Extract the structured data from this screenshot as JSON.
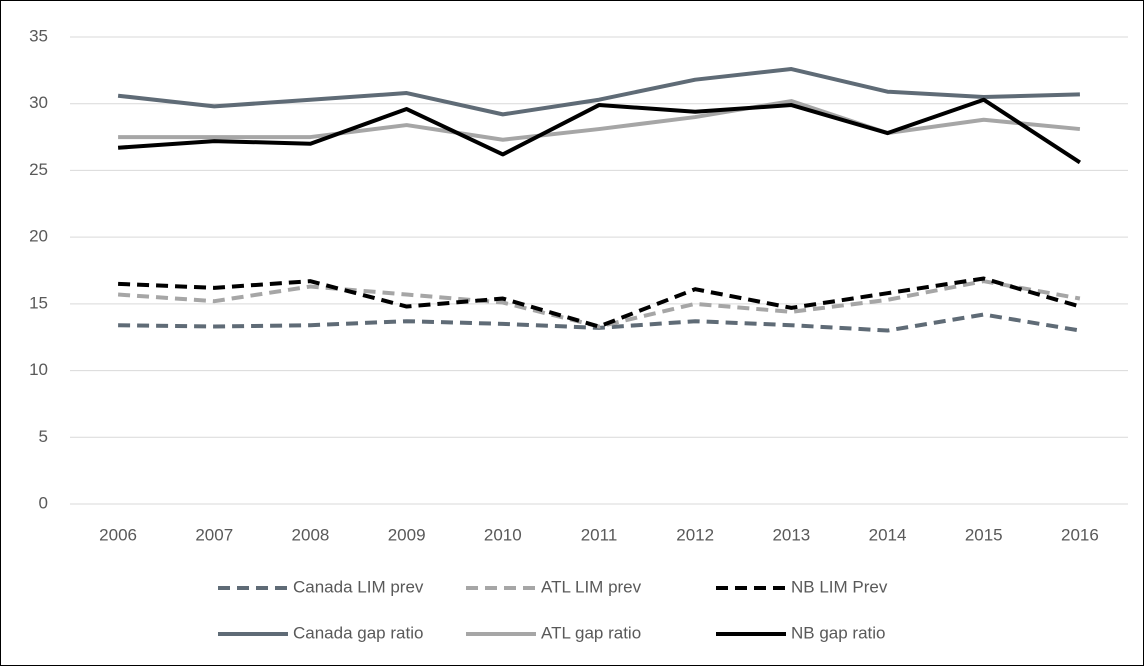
{
  "chart_data": {
    "type": "line",
    "categories": [
      "2006",
      "2007",
      "2008",
      "2009",
      "2010",
      "2011",
      "2012",
      "2013",
      "2014",
      "2015",
      "2016"
    ],
    "series": [
      {
        "name": "Canada LIM prev",
        "color": "#5f6b76",
        "dashed": true,
        "values": [
          13.4,
          13.3,
          13.4,
          13.7,
          13.5,
          13.2,
          13.7,
          13.4,
          13.0,
          14.2,
          13.0
        ]
      },
      {
        "name": "ATL LIM prev",
        "color": "#a6a6a6",
        "dashed": true,
        "values": [
          15.7,
          15.2,
          16.3,
          15.7,
          15.1,
          13.3,
          15.0,
          14.4,
          15.3,
          16.7,
          15.4
        ]
      },
      {
        "name": "NB LIM Prev",
        "color": "#000000",
        "dashed": true,
        "values": [
          16.5,
          16.2,
          16.7,
          14.8,
          15.4,
          13.3,
          16.1,
          14.7,
          15.8,
          16.9,
          14.8
        ]
      },
      {
        "name": "Canada gap ratio",
        "color": "#5f6b76",
        "dashed": false,
        "values": [
          30.6,
          29.8,
          30.3,
          30.8,
          29.2,
          30.3,
          31.8,
          32.6,
          30.9,
          30.5,
          30.7
        ]
      },
      {
        "name": "ATL gap ratio",
        "color": "#a6a6a6",
        "dashed": false,
        "values": [
          27.5,
          27.5,
          27.5,
          28.4,
          27.3,
          28.1,
          29.0,
          30.2,
          27.8,
          28.8,
          28.1
        ]
      },
      {
        "name": "NB gap ratio",
        "color": "#000000",
        "dashed": false,
        "values": [
          26.7,
          27.2,
          27.0,
          29.6,
          26.2,
          29.9,
          29.4,
          29.9,
          27.8,
          30.3,
          25.6
        ]
      }
    ],
    "ylim": [
      0,
      35
    ],
    "yticks": [
      0,
      5,
      10,
      15,
      20,
      25,
      30,
      35
    ],
    "grid": true,
    "legend": "bottom"
  }
}
